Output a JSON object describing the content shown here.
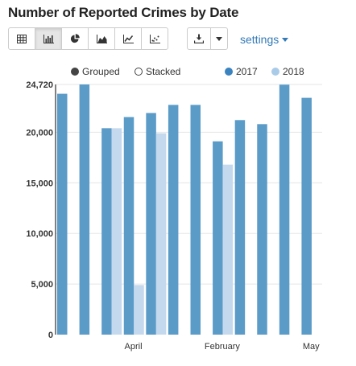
{
  "title": "Number of Reported Crimes by Date",
  "toolbar": {
    "buttons": [
      {
        "icon": "table-icon",
        "active": false
      },
      {
        "icon": "bar-chart-icon",
        "active": true
      },
      {
        "icon": "pie-chart-icon",
        "active": false
      },
      {
        "icon": "area-chart-icon",
        "active": false
      },
      {
        "icon": "line-chart-icon",
        "active": false
      },
      {
        "icon": "scatter-chart-icon",
        "active": false
      }
    ],
    "download_icon": "download-icon",
    "dropdown_icon": "caret-down-icon",
    "settings_label": "settings"
  },
  "controls": {
    "grouped_label": "Grouped",
    "stacked_label": "Stacked",
    "grouped_selected": true
  },
  "colors": {
    "series_2017": "#5b9bc8",
    "series_2018": "#c5d9ee",
    "legend_2017": "#3a83bf",
    "legend_2018": "#a9cbe8",
    "grid": "#e5e5e5",
    "axis": "#000000"
  },
  "chart_data": {
    "type": "bar",
    "title": "Number of Reported Crimes by Date",
    "ylim": [
      0,
      24720
    ],
    "y_ticks": [
      {
        "value": 0,
        "label": "0"
      },
      {
        "value": 5000,
        "label": "5,000"
      },
      {
        "value": 10000,
        "label": "10,000"
      },
      {
        "value": 15000,
        "label": "15,000"
      },
      {
        "value": 20000,
        "label": "20,000"
      },
      {
        "value": 24720,
        "label": "24,720"
      }
    ],
    "x_tick_labels": [
      {
        "index": 3,
        "label": "April"
      },
      {
        "index": 7,
        "label": "February"
      },
      {
        "index": 11,
        "label": "May"
      }
    ],
    "series": [
      {
        "name": "2017",
        "values": [
          23800,
          24720,
          20400,
          21500,
          21900,
          22700,
          22700,
          19100,
          21200,
          20800,
          24700,
          23400
        ]
      },
      {
        "name": "2018",
        "values": [
          0,
          0,
          20400,
          4900,
          19900,
          0,
          0,
          16800,
          0,
          0,
          0,
          0
        ]
      }
    ],
    "grid": true,
    "legend_position": "top-right"
  }
}
